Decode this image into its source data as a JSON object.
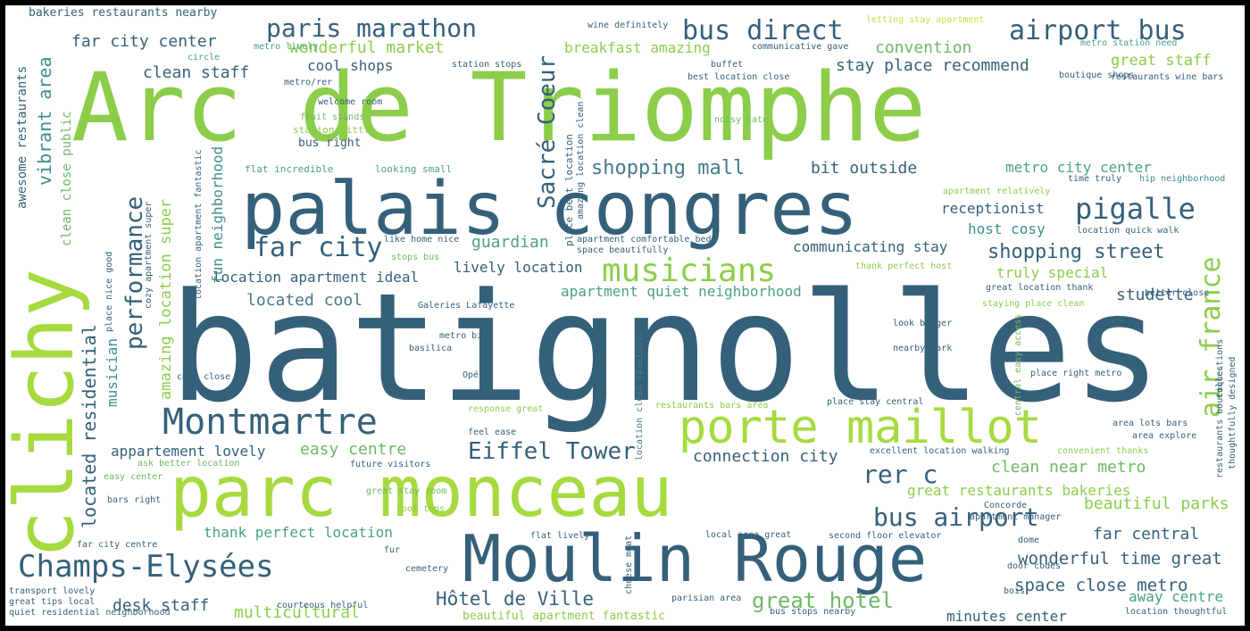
{
  "colors": {
    "frame": "#000000",
    "background": "#ffffff",
    "palette": [
      "#35607a",
      "#477a8a",
      "#3d8f8c",
      "#4ba089",
      "#6fb865",
      "#8ccd4a",
      "#a6da3f",
      "#c4e23a"
    ]
  },
  "words": [
    "batignolles",
    "Arc de Triomphe",
    "palais congres",
    "parc monceau",
    "Moulin Rouge",
    "clichy",
    "porte maillot",
    "Montmartre",
    "Champs-Elysées",
    "musicians",
    "pigalle",
    "air france",
    "paris marathon",
    "bus direct",
    "airport bus",
    "far city",
    "performance",
    "Sacré Coeur",
    "Eiffel Tower",
    "bus airport",
    "shopping street",
    "rer c",
    "shopping mall",
    "wonderful time great",
    "space close metro",
    "great hotel",
    "Hôtel de Ville",
    "located residential",
    "vibrant area",
    "amazing location super",
    "far city center",
    "wonderful market",
    "convention",
    "stay place recommend",
    "clean staff",
    "cool shops",
    "great staff",
    "bit outside",
    "metro city center",
    "receptionist",
    "host cosy",
    "communicating stay",
    "truly special",
    "studette",
    "location apartment ideal",
    "lively location",
    "located cool",
    "apartment quiet neighborhood",
    "guardian",
    "appartement lovely",
    "easy centre",
    "connection city",
    "clean near metro",
    "great restaurants bakeries",
    "beautiful parks",
    "far central",
    "thank perfect location",
    "desk staff",
    "multicultural",
    "minutes center",
    "away centre",
    "musician",
    "fun neighborhood",
    "awesome restaurants",
    "clean close public",
    "breakfast amazing",
    "beautiful apartment fantastic",
    "bakeries restaurants nearby",
    "fruit stands",
    "station little",
    "bus right",
    "flat incredible",
    "looking small",
    "place best location",
    "amazing location clean",
    "metro lively",
    "circle",
    "metro/rer",
    "welcome room",
    "station stops",
    "buffet",
    "best location close",
    "boutique shops",
    "restaurants wine bars",
    "metro station need",
    "wine definitely",
    "communicative gave",
    "letting stay apartment",
    "noisy late",
    "time truly",
    "hip neighborhood",
    "apartment relatively",
    "location quick walk",
    "thank perfect host",
    "better close",
    "great location thank",
    "staying place clean",
    "look bigger",
    "nearby park",
    "place right metro",
    "central easy access",
    "collections",
    "restaurants boutiques",
    "thoughtfully designed",
    "area lots bars",
    "area explore",
    "convenient thanks",
    "excellent location walking",
    "place stay central",
    "restaurants bars area",
    "location clean spacious",
    "response great",
    "feel ease",
    "Opéra",
    "basilica",
    "metro big",
    "Galeries Lafayette",
    "like home nice",
    "stops bus",
    "apartment comfortable beds",
    "space beautifully",
    "location apartment fantastic",
    "cozy apartment super",
    "place nice good",
    "calm close",
    "ask better location",
    "easy center",
    "bars right",
    "far city centre",
    "transport lovely",
    "great tips local",
    "quiet residential neighborhood",
    "future visitors",
    "great stay room",
    "roof tops",
    "flat lively",
    "local area great",
    "cheese meat",
    "fur",
    "cemetery",
    "courteous helpful",
    "parisian area",
    "second floor elevator",
    "apartment manager",
    "Concorde",
    "dome",
    "door codes",
    "bois",
    "bus stops nearby",
    "location thoughtful"
  ]
}
